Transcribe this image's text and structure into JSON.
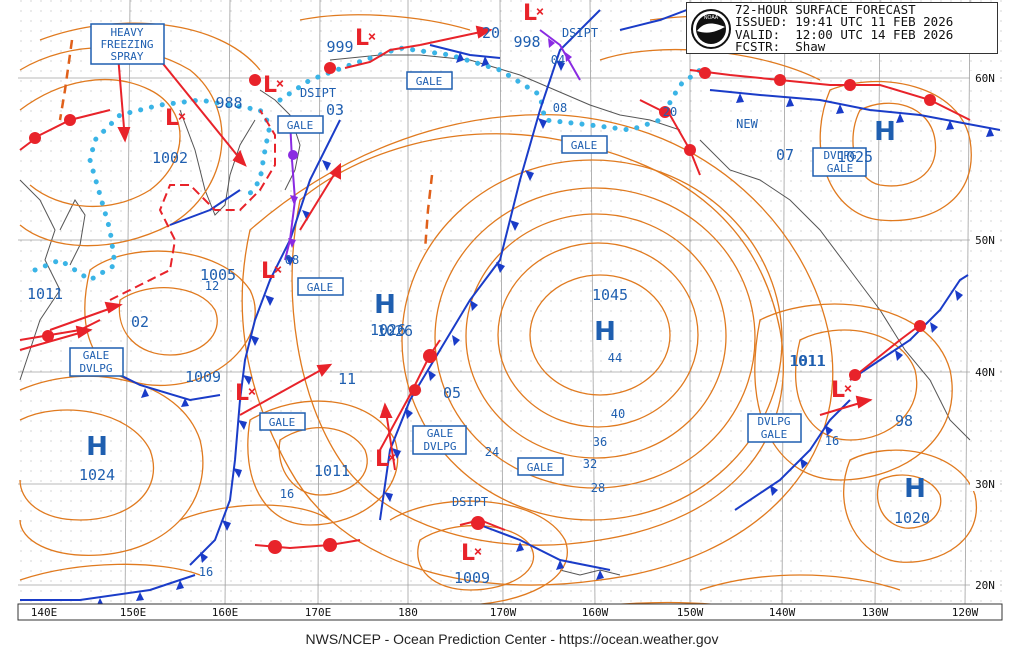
{
  "header": {
    "title": "72-HOUR SURFACE FORECAST",
    "issued": "ISSUED: 19:41 UTC 11 FEB 2026",
    "valid": "VALID:  12:00 UTC 14 FEB 2026",
    "forecaster": "FCSTR:  Shaw",
    "logo_text": "NOAA"
  },
  "footer": "NWS/NCEP - Ocean Prediction Center - https://ocean.weather.gov",
  "colors": {
    "isobar": "#e07a1f",
    "front_cold": "#1a3cc8",
    "front_warm": "#e8232a",
    "occluded": "#8a2be2",
    "ice": "#3ab4e6",
    "label": "#1f5fb0",
    "low": "#e8232a",
    "high": "#1f5fb0",
    "grid": "#9a9a9a"
  },
  "longitudes": [
    "140E",
    "150E",
    "160E",
    "170E",
    "180",
    "170W",
    "160W",
    "150W",
    "140W",
    "130W",
    "120W"
  ],
  "latitudes": [
    "60N",
    "50N",
    "40N",
    "30N",
    "20N"
  ],
  "highs": [
    {
      "id": "h1",
      "pressure": "1045"
    },
    {
      "id": "h2",
      "pressure": "1026"
    },
    {
      "id": "h3",
      "pressure": "1025"
    },
    {
      "id": "h4",
      "pressure": "1024"
    },
    {
      "id": "h5",
      "pressure": "1020"
    }
  ],
  "lows": [
    {
      "id": "l1",
      "pressure": "1002"
    },
    {
      "id": "l2",
      "pressure": "988"
    },
    {
      "id": "l3",
      "pressure": "1005"
    },
    {
      "id": "l4",
      "pressure": "1009"
    },
    {
      "id": "l5",
      "pressure": "1011"
    },
    {
      "id": "l6",
      "pressure": "1011"
    },
    {
      "id": "l7",
      "pressure": "1009"
    },
    {
      "id": "l8",
      "pressure": "999"
    },
    {
      "id": "l9",
      "pressure": "998"
    }
  ],
  "pressure_text": [
    "1026",
    "1011",
    "02",
    "03",
    "08",
    "11",
    "12",
    "05",
    "44",
    "40",
    "36",
    "32",
    "28",
    "24",
    "16",
    "16",
    "16",
    "20",
    "20",
    "04",
    "08",
    "07",
    "98",
    "1011"
  ],
  "warnings": [
    "HEAVY",
    "FREEZING",
    "SPRAY",
    "GALE",
    "GALE",
    "GALE",
    "GALE",
    "GALE",
    "GALE",
    "DVLPG",
    "GALE",
    "DVLPG",
    "GALE",
    "DVLPG",
    "GALE",
    "DVLPG",
    "GALE"
  ],
  "misc_text": [
    "DSIPT",
    "DSIPT",
    "DSIPT",
    "NEW"
  ]
}
